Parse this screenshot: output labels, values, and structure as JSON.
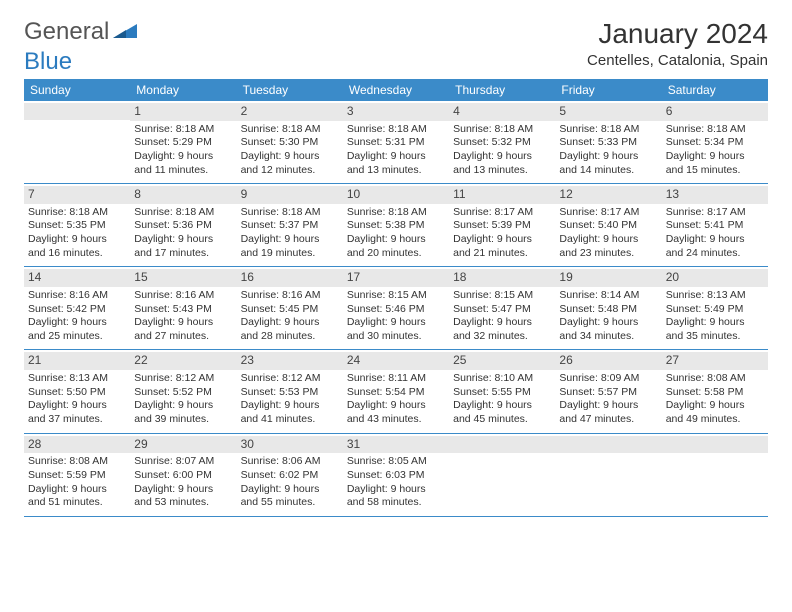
{
  "logo": {
    "text1": "General",
    "text2": "Blue"
  },
  "title": "January 2024",
  "location": "Centelles, Catalonia, Spain",
  "colors": {
    "header_bg": "#3b8bc9",
    "header_text": "#ffffff",
    "daynum_bg": "#e8e8e8",
    "divider": "#3b8bc9",
    "body_text": "#333333",
    "logo_gray": "#555555",
    "logo_blue": "#2b7bbf"
  },
  "weekdays": [
    "Sunday",
    "Monday",
    "Tuesday",
    "Wednesday",
    "Thursday",
    "Friday",
    "Saturday"
  ],
  "weeks": [
    [
      {
        "n": "",
        "sr": "",
        "ss": "",
        "dl": ""
      },
      {
        "n": "1",
        "sr": "Sunrise: 8:18 AM",
        "ss": "Sunset: 5:29 PM",
        "dl": "Daylight: 9 hours and 11 minutes."
      },
      {
        "n": "2",
        "sr": "Sunrise: 8:18 AM",
        "ss": "Sunset: 5:30 PM",
        "dl": "Daylight: 9 hours and 12 minutes."
      },
      {
        "n": "3",
        "sr": "Sunrise: 8:18 AM",
        "ss": "Sunset: 5:31 PM",
        "dl": "Daylight: 9 hours and 13 minutes."
      },
      {
        "n": "4",
        "sr": "Sunrise: 8:18 AM",
        "ss": "Sunset: 5:32 PM",
        "dl": "Daylight: 9 hours and 13 minutes."
      },
      {
        "n": "5",
        "sr": "Sunrise: 8:18 AM",
        "ss": "Sunset: 5:33 PM",
        "dl": "Daylight: 9 hours and 14 minutes."
      },
      {
        "n": "6",
        "sr": "Sunrise: 8:18 AM",
        "ss": "Sunset: 5:34 PM",
        "dl": "Daylight: 9 hours and 15 minutes."
      }
    ],
    [
      {
        "n": "7",
        "sr": "Sunrise: 8:18 AM",
        "ss": "Sunset: 5:35 PM",
        "dl": "Daylight: 9 hours and 16 minutes."
      },
      {
        "n": "8",
        "sr": "Sunrise: 8:18 AM",
        "ss": "Sunset: 5:36 PM",
        "dl": "Daylight: 9 hours and 17 minutes."
      },
      {
        "n": "9",
        "sr": "Sunrise: 8:18 AM",
        "ss": "Sunset: 5:37 PM",
        "dl": "Daylight: 9 hours and 19 minutes."
      },
      {
        "n": "10",
        "sr": "Sunrise: 8:18 AM",
        "ss": "Sunset: 5:38 PM",
        "dl": "Daylight: 9 hours and 20 minutes."
      },
      {
        "n": "11",
        "sr": "Sunrise: 8:17 AM",
        "ss": "Sunset: 5:39 PM",
        "dl": "Daylight: 9 hours and 21 minutes."
      },
      {
        "n": "12",
        "sr": "Sunrise: 8:17 AM",
        "ss": "Sunset: 5:40 PM",
        "dl": "Daylight: 9 hours and 23 minutes."
      },
      {
        "n": "13",
        "sr": "Sunrise: 8:17 AM",
        "ss": "Sunset: 5:41 PM",
        "dl": "Daylight: 9 hours and 24 minutes."
      }
    ],
    [
      {
        "n": "14",
        "sr": "Sunrise: 8:16 AM",
        "ss": "Sunset: 5:42 PM",
        "dl": "Daylight: 9 hours and 25 minutes."
      },
      {
        "n": "15",
        "sr": "Sunrise: 8:16 AM",
        "ss": "Sunset: 5:43 PM",
        "dl": "Daylight: 9 hours and 27 minutes."
      },
      {
        "n": "16",
        "sr": "Sunrise: 8:16 AM",
        "ss": "Sunset: 5:45 PM",
        "dl": "Daylight: 9 hours and 28 minutes."
      },
      {
        "n": "17",
        "sr": "Sunrise: 8:15 AM",
        "ss": "Sunset: 5:46 PM",
        "dl": "Daylight: 9 hours and 30 minutes."
      },
      {
        "n": "18",
        "sr": "Sunrise: 8:15 AM",
        "ss": "Sunset: 5:47 PM",
        "dl": "Daylight: 9 hours and 32 minutes."
      },
      {
        "n": "19",
        "sr": "Sunrise: 8:14 AM",
        "ss": "Sunset: 5:48 PM",
        "dl": "Daylight: 9 hours and 34 minutes."
      },
      {
        "n": "20",
        "sr": "Sunrise: 8:13 AM",
        "ss": "Sunset: 5:49 PM",
        "dl": "Daylight: 9 hours and 35 minutes."
      }
    ],
    [
      {
        "n": "21",
        "sr": "Sunrise: 8:13 AM",
        "ss": "Sunset: 5:50 PM",
        "dl": "Daylight: 9 hours and 37 minutes."
      },
      {
        "n": "22",
        "sr": "Sunrise: 8:12 AM",
        "ss": "Sunset: 5:52 PM",
        "dl": "Daylight: 9 hours and 39 minutes."
      },
      {
        "n": "23",
        "sr": "Sunrise: 8:12 AM",
        "ss": "Sunset: 5:53 PM",
        "dl": "Daylight: 9 hours and 41 minutes."
      },
      {
        "n": "24",
        "sr": "Sunrise: 8:11 AM",
        "ss": "Sunset: 5:54 PM",
        "dl": "Daylight: 9 hours and 43 minutes."
      },
      {
        "n": "25",
        "sr": "Sunrise: 8:10 AM",
        "ss": "Sunset: 5:55 PM",
        "dl": "Daylight: 9 hours and 45 minutes."
      },
      {
        "n": "26",
        "sr": "Sunrise: 8:09 AM",
        "ss": "Sunset: 5:57 PM",
        "dl": "Daylight: 9 hours and 47 minutes."
      },
      {
        "n": "27",
        "sr": "Sunrise: 8:08 AM",
        "ss": "Sunset: 5:58 PM",
        "dl": "Daylight: 9 hours and 49 minutes."
      }
    ],
    [
      {
        "n": "28",
        "sr": "Sunrise: 8:08 AM",
        "ss": "Sunset: 5:59 PM",
        "dl": "Daylight: 9 hours and 51 minutes."
      },
      {
        "n": "29",
        "sr": "Sunrise: 8:07 AM",
        "ss": "Sunset: 6:00 PM",
        "dl": "Daylight: 9 hours and 53 minutes."
      },
      {
        "n": "30",
        "sr": "Sunrise: 8:06 AM",
        "ss": "Sunset: 6:02 PM",
        "dl": "Daylight: 9 hours and 55 minutes."
      },
      {
        "n": "31",
        "sr": "Sunrise: 8:05 AM",
        "ss": "Sunset: 6:03 PM",
        "dl": "Daylight: 9 hours and 58 minutes."
      },
      {
        "n": "",
        "sr": "",
        "ss": "",
        "dl": ""
      },
      {
        "n": "",
        "sr": "",
        "ss": "",
        "dl": ""
      },
      {
        "n": "",
        "sr": "",
        "ss": "",
        "dl": ""
      }
    ]
  ]
}
